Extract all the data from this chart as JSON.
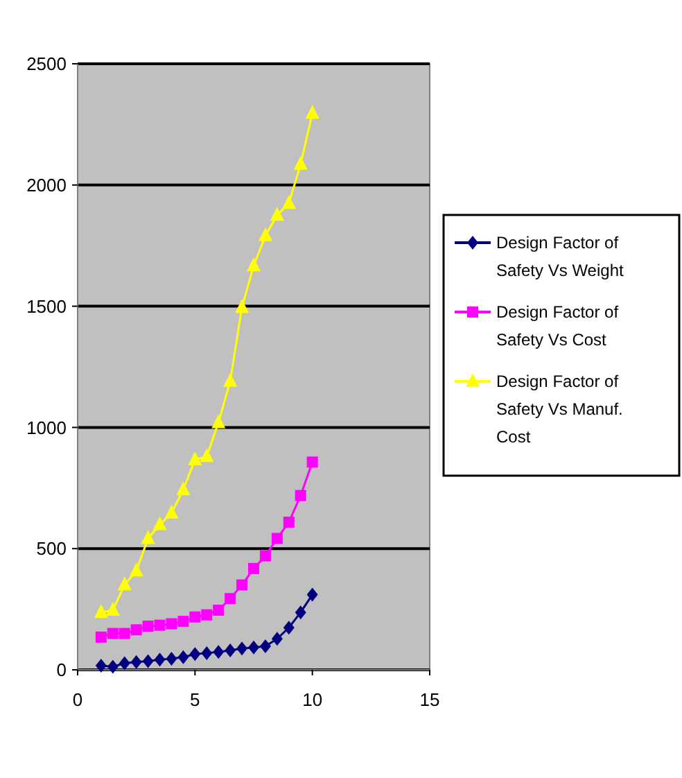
{
  "chart_data": {
    "type": "line",
    "x": [
      1,
      1.5,
      2,
      2.5,
      3,
      3.5,
      4,
      4.5,
      5,
      5.5,
      6,
      6.5,
      7,
      7.5,
      8,
      8.5,
      9,
      9.5,
      10
    ],
    "series": [
      {
        "name": "Design Factor of Safety Vs Weight",
        "color": "#000080",
        "marker": "diamond",
        "values": [
          17,
          13,
          27,
          32,
          36,
          42,
          46,
          52,
          65,
          69,
          74,
          80,
          88,
          92,
          97,
          128,
          174,
          237,
          310
        ]
      },
      {
        "name": "Design Factor of Safety Vs Cost",
        "color": "#ff00ff",
        "marker": "square",
        "values": [
          135,
          150,
          150,
          165,
          180,
          184,
          190,
          200,
          218,
          227,
          246,
          294,
          350,
          418,
          470,
          542,
          609,
          719,
          857
        ]
      },
      {
        "name": "Design Factor of Safety Vs Manuf. Cost",
        "color": "#ffff00",
        "marker": "triangle",
        "values": [
          237,
          246,
          351,
          408,
          542,
          599,
          647,
          743,
          867,
          880,
          1020,
          1191,
          1495,
          1667,
          1791,
          1876,
          1924,
          2086,
          2296
        ]
      }
    ],
    "xlim": [
      0,
      15
    ],
    "xticks": [
      0,
      5,
      10,
      15
    ],
    "ylim": [
      0,
      2500
    ],
    "yticks": [
      0,
      500,
      1000,
      1500,
      2000,
      2500
    ],
    "grid": "y",
    "legend": "right"
  }
}
